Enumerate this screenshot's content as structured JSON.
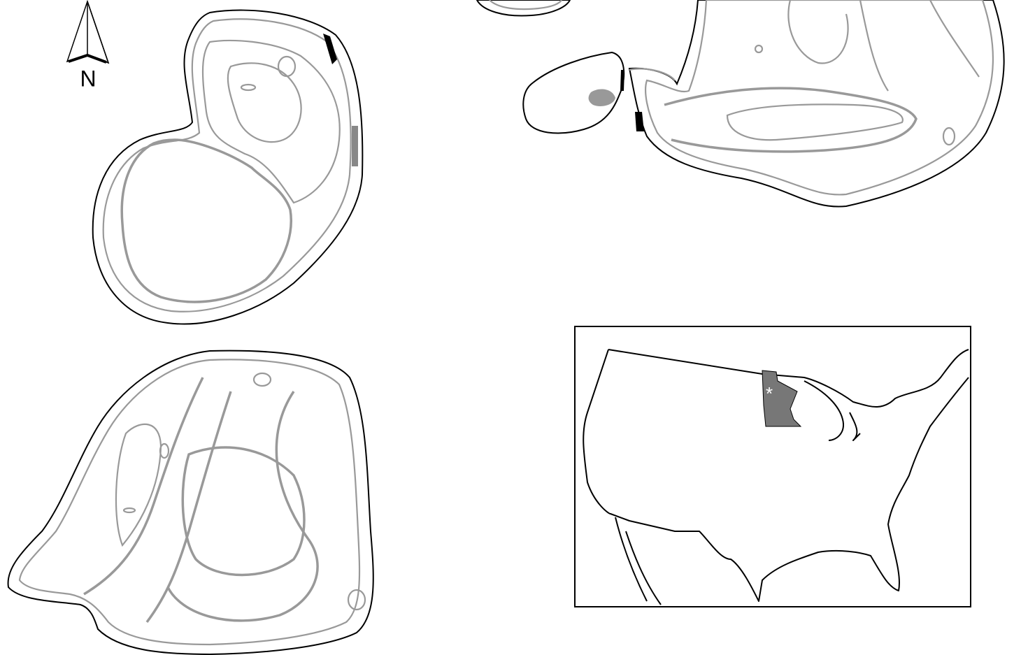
{
  "north_arrow": {
    "label": "N"
  },
  "inset": {
    "marker": "*"
  }
}
